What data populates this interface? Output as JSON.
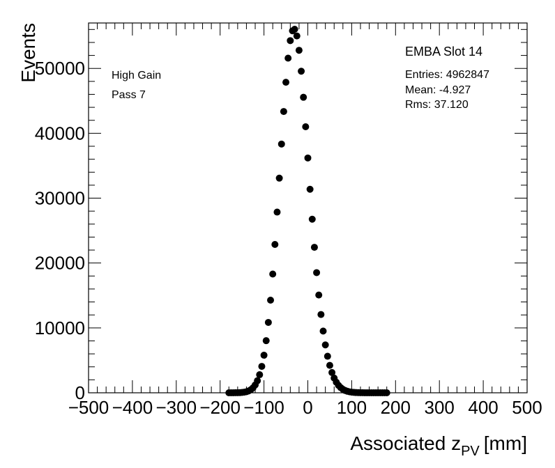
{
  "chart_data": {
    "type": "scatter",
    "xlabel_main": "Associated z",
    "xlabel_sub": "PV",
    "xlabel_unit": "[mm]",
    "ylabel": "Events",
    "xlim": [
      -500,
      500
    ],
    "ylim": [
      0,
      57000
    ],
    "xticks": [
      -500,
      -400,
      -300,
      -200,
      -100,
      0,
      100,
      200,
      300,
      400,
      500
    ],
    "yticks": [
      0,
      10000,
      20000,
      30000,
      40000,
      50000
    ],
    "grid": false,
    "legend": null,
    "annotations": {
      "gain": "High Gain",
      "pass": "Pass 7",
      "module": "EMBA Slot 14",
      "entries": "Entries: 4962847",
      "mean": "Mean: -4.927",
      "rms": "Rms: 37.120"
    },
    "series": [
      {
        "marker": "filled-circle",
        "color": "#000000",
        "x": [
          -180,
          -175,
          -170,
          -165,
          -160,
          -155,
          -150,
          -145,
          -140,
          -135,
          -130,
          -125,
          -120,
          -115,
          -110,
          -105,
          -100,
          -95,
          -90,
          -85,
          -80,
          -75,
          -70,
          -65,
          -60,
          -55,
          -50,
          -45,
          -40,
          -35,
          -30,
          -25,
          -20,
          -15,
          -10,
          -5,
          0,
          5,
          10,
          15,
          20,
          25,
          30,
          35,
          40,
          45,
          50,
          55,
          60,
          65,
          70,
          75,
          80,
          85,
          90,
          95,
          100,
          105,
          110,
          115,
          120,
          125,
          130,
          135,
          140,
          145,
          150,
          155,
          160,
          165,
          170,
          175,
          180
        ],
        "y": [
          1,
          2,
          4,
          8,
          15,
          29,
          53,
          95,
          166,
          283,
          471,
          764,
          1208,
          1859,
          2788,
          4071,
          5793,
          8031,
          10847,
          14275,
          18301,
          22866,
          27851,
          33083,
          38340,
          43360,
          47864,
          51581,
          54281,
          55793,
          56033,
          55002,
          52792,
          49567,
          45551,
          41005,
          36195,
          31372,
          26755,
          22426,
          18523,
          15066,
          12068,
          9513,
          7379,
          5631,
          4228,
          3122,
          2268,
          1621,
          1140,
          789,
          537,
          359,
          237,
          154,
          98,
          61,
          38,
          23,
          14,
          8,
          5,
          3,
          2,
          1,
          1,
          1,
          1,
          0,
          0,
          0,
          0
        ]
      }
    ]
  }
}
